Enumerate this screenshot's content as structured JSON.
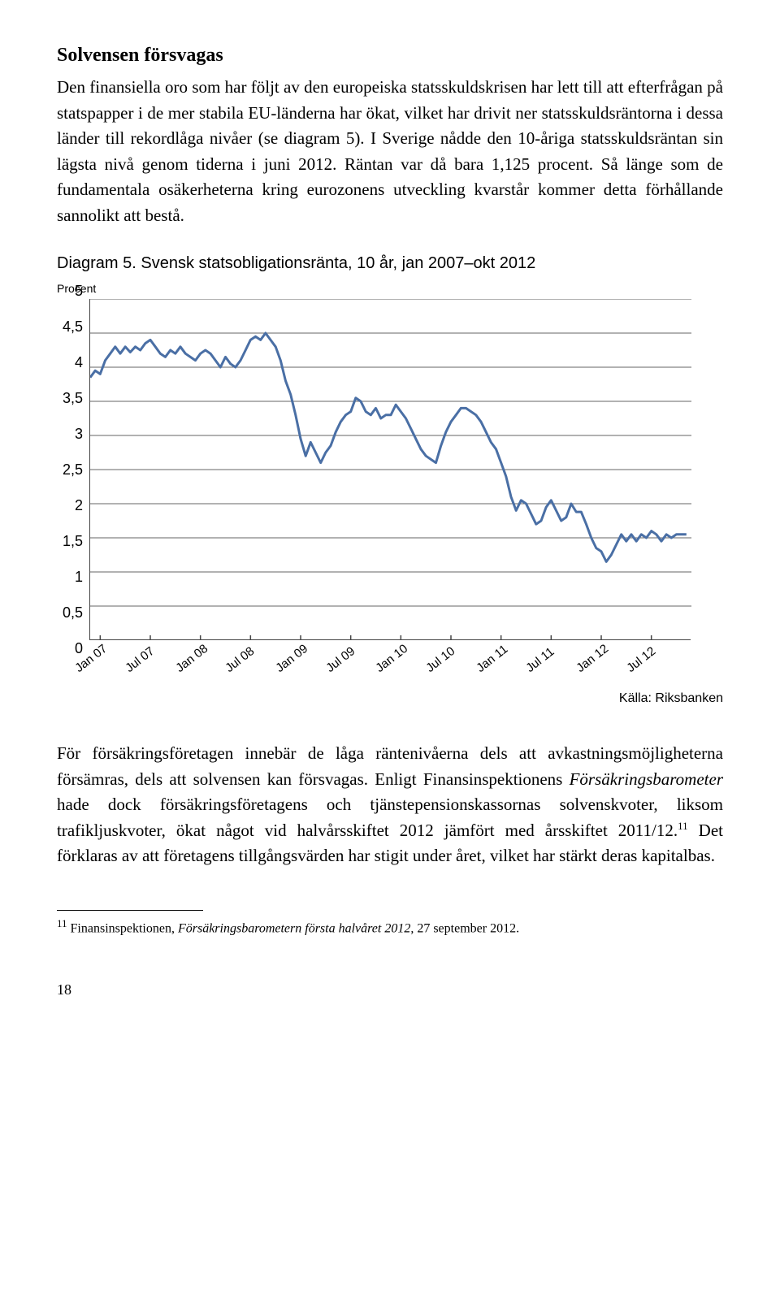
{
  "heading": "Solvensen försvagas",
  "para1": "Den finansiella oro som har följt av den europeiska statsskuldskrisen har lett till att efterfrågan på statspapper i de mer stabila EU-länderna har ökat, vilket har drivit ner statsskuldsräntorna i dessa länder till rekordlåga nivåer (se diagram 5). I Sverige nådde den 10-åriga statsskuldsräntan sin lägsta nivå genom tiderna i juni 2012. Räntan var då bara 1,125 procent. Så länge som de fundamentala osäkerheterna kring eurozonens utveckling kvarstår kommer detta förhållande sannolikt att bestå.",
  "chart": {
    "title": "Diagram 5. Svensk statsobligationsränta, 10 år, jan 2007–okt 2012",
    "ylabel_top": "Procent",
    "type": "line",
    "ylim": [
      0,
      5
    ],
    "ytick_step": 0.5,
    "yticks": [
      "5",
      "4,5",
      "4",
      "3,5",
      "3",
      "2,5",
      "2",
      "1,5",
      "1",
      "0,5",
      "0"
    ],
    "xticks": [
      "Jan 07",
      "Jul 07",
      "Jan 08",
      "Jul 08",
      "Jan 09",
      "Jul 09",
      "Jan 10",
      "Jul 10",
      "Jan 11",
      "Jul 11",
      "Jan 12",
      "Jul 12"
    ],
    "line_color": "#4a6fa5",
    "line_width": 3,
    "grid_color": "#666666",
    "background_color": "#ffffff",
    "values": [
      3.85,
      3.95,
      3.9,
      4.1,
      4.2,
      4.3,
      4.2,
      4.3,
      4.22,
      4.3,
      4.25,
      4.35,
      4.4,
      4.3,
      4.2,
      4.15,
      4.25,
      4.2,
      4.3,
      4.2,
      4.15,
      4.1,
      4.2,
      4.25,
      4.2,
      4.1,
      4.0,
      4.15,
      4.05,
      4.0,
      4.1,
      4.25,
      4.4,
      4.45,
      4.4,
      4.5,
      4.4,
      4.3,
      4.1,
      3.8,
      3.6,
      3.3,
      2.95,
      2.7,
      2.9,
      2.75,
      2.6,
      2.75,
      2.85,
      3.05,
      3.2,
      3.3,
      3.35,
      3.55,
      3.5,
      3.35,
      3.3,
      3.4,
      3.25,
      3.3,
      3.3,
      3.45,
      3.35,
      3.25,
      3.1,
      2.95,
      2.8,
      2.7,
      2.65,
      2.6,
      2.85,
      3.05,
      3.2,
      3.3,
      3.4,
      3.4,
      3.35,
      3.3,
      3.2,
      3.05,
      2.9,
      2.8,
      2.6,
      2.4,
      2.1,
      1.9,
      2.05,
      2.0,
      1.85,
      1.7,
      1.75,
      1.95,
      2.05,
      1.9,
      1.75,
      1.8,
      2.0,
      1.88,
      1.88,
      1.7,
      1.5,
      1.35,
      1.3,
      1.15,
      1.25,
      1.4,
      1.55,
      1.45,
      1.55,
      1.45,
      1.55,
      1.5,
      1.6,
      1.55,
      1.45,
      1.55,
      1.5,
      1.55,
      1.55,
      1.55
    ],
    "xlim": [
      0,
      120
    ],
    "source": "Källa: Riksbanken"
  },
  "para2_a": "För försäkringsföretagen innebär de låga räntenivåerna dels att avkastningsmöjligheterna försämras, dels att solvensen kan försvagas. Enligt Finansinspektionens ",
  "para2_italic": "Försäkringsbarometer",
  "para2_b": " hade dock försäkringsföretagens och tjänstepensionskassornas solvenskvoter, liksom trafikljuskvoter, ökat något vid halvårsskiftet 2012 jämfört med årsskiftet 2011/12.",
  "para2_sup": "11",
  "para2_c": " Det förklaras av att företagens tillgångsvärden har stigit under året, vilket har stärkt deras kapitalbas.",
  "footnote_num": "11",
  "footnote_a": " Finansinspektionen, ",
  "footnote_italic": "Försäkringsbarometern första halvåret 2012",
  "footnote_b": ", 27 september 2012.",
  "pagenum": "18"
}
